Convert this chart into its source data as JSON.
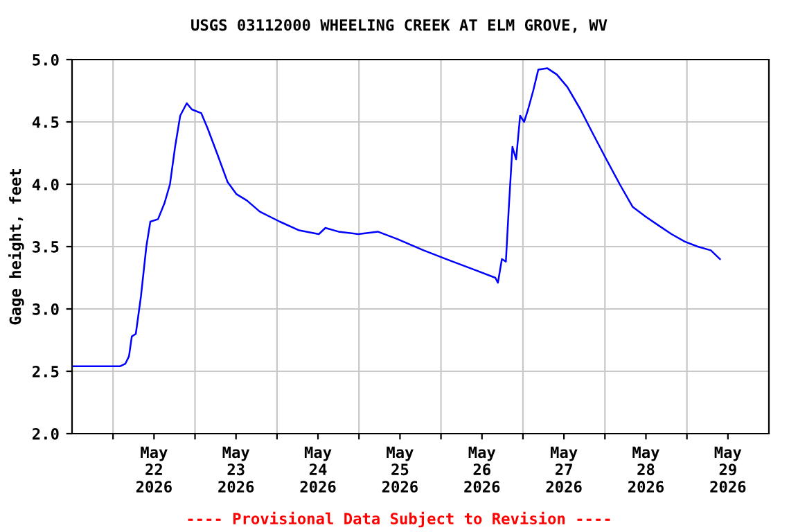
{
  "chart_data": {
    "type": "line",
    "title": "USGS 03112000 WHEELING CREEK AT ELM GROVE, WV",
    "ylabel": "Gage height, feet",
    "annotations": [
      "---- Provisional Data Subject to Revision ----"
    ],
    "x": [
      "2026-05-21T12:15",
      "2026-05-22T02:00",
      "2026-05-22T03:35",
      "2026-05-22T04:40",
      "2026-05-22T05:30",
      "2026-05-22T06:40",
      "2026-05-22T08:10",
      "2026-05-22T09:45",
      "2026-05-22T10:55",
      "2026-05-22T13:10",
      "2026-05-22T15:05",
      "2026-05-22T16:40",
      "2026-05-22T18:10",
      "2026-05-22T19:40",
      "2026-05-22T21:35",
      "2026-05-22T23:05",
      "2026-05-23T01:50",
      "2026-05-23T03:40",
      "2026-05-23T06:25",
      "2026-05-23T09:30",
      "2026-05-23T12:10",
      "2026-05-23T15:10",
      "2026-05-23T19:00",
      "2026-05-24T00:50",
      "2026-05-24T06:30",
      "2026-05-24T12:15",
      "2026-05-24T14:10",
      "2026-05-24T18:00",
      "2026-05-24T23:45",
      "2026-05-25T05:30",
      "2026-05-25T11:15",
      "2026-05-25T18:55",
      "2026-05-26T02:30",
      "2026-05-26T10:10",
      "2026-05-26T15:55",
      "2026-05-26T16:40",
      "2026-05-26T17:50",
      "2026-05-26T19:00",
      "2026-05-26T19:50",
      "2026-05-26T20:55",
      "2026-05-26T22:00",
      "2026-05-26T23:10",
      "2026-05-27T00:20",
      "2026-05-27T01:30",
      "2026-05-27T03:00",
      "2026-05-27T04:30",
      "2026-05-27T07:10",
      "2026-05-27T09:55",
      "2026-05-27T13:00",
      "2026-05-27T16:50",
      "2026-05-27T20:35",
      "2026-05-28T00:25",
      "2026-05-28T04:20",
      "2026-05-28T08:05",
      "2026-05-28T11:55",
      "2026-05-28T15:40",
      "2026-05-28T19:30",
      "2026-05-28T23:25",
      "2026-05-29T03:10",
      "2026-05-29T07:00",
      "2026-05-29T09:40"
    ],
    "series": [
      {
        "color": "#0000ff",
        "values": [
          2.54,
          2.54,
          2.56,
          2.62,
          2.78,
          2.8,
          3.1,
          3.5,
          3.7,
          3.72,
          3.85,
          4.0,
          4.3,
          4.55,
          4.65,
          4.6,
          4.57,
          4.45,
          4.25,
          4.02,
          3.92,
          3.87,
          3.78,
          3.7,
          3.63,
          3.6,
          3.65,
          3.62,
          3.6,
          3.62,
          3.56,
          3.47,
          3.39,
          3.31,
          3.25,
          3.21,
          3.4,
          3.38,
          3.8,
          4.3,
          4.2,
          4.55,
          4.5,
          4.6,
          4.75,
          4.92,
          4.93,
          4.88,
          4.78,
          4.6,
          4.4,
          4.2,
          4.0,
          3.82,
          3.74,
          3.67,
          3.6,
          3.54,
          3.5,
          3.47,
          3.4
        ]
      }
    ],
    "xlim": [
      "2026-05-21T12:00",
      "2026-05-30T00:00"
    ],
    "xticks": [
      {
        "value": "2026-05-22T00:00",
        "label": null
      },
      {
        "value": "2026-05-22T12:00",
        "label": "May\n22\n2026"
      },
      {
        "value": "2026-05-23T00:00",
        "label": null
      },
      {
        "value": "2026-05-23T12:00",
        "label": "May\n23\n2026"
      },
      {
        "value": "2026-05-24T00:00",
        "label": null
      },
      {
        "value": "2026-05-24T12:00",
        "label": "May\n24\n2026"
      },
      {
        "value": "2026-05-25T00:00",
        "label": null
      },
      {
        "value": "2026-05-25T12:00",
        "label": "May\n25\n2026"
      },
      {
        "value": "2026-05-26T00:00",
        "label": null
      },
      {
        "value": "2026-05-26T12:00",
        "label": "May\n26\n2026"
      },
      {
        "value": "2026-05-27T00:00",
        "label": null
      },
      {
        "value": "2026-05-27T12:00",
        "label": "May\n27\n2026"
      },
      {
        "value": "2026-05-28T00:00",
        "label": null
      },
      {
        "value": "2026-05-28T12:00",
        "label": "May\n28\n2026"
      },
      {
        "value": "2026-05-29T00:00",
        "label": null
      },
      {
        "value": "2026-05-29T12:00",
        "label": "May\n29\n2026"
      }
    ],
    "ylim": [
      2.0,
      5.0
    ],
    "yticks": [
      {
        "value": 2.0,
        "label": "2.0"
      },
      {
        "value": 2.5,
        "label": "2.5"
      },
      {
        "value": 3.0,
        "label": "3.0"
      },
      {
        "value": 3.5,
        "label": "3.5"
      },
      {
        "value": 4.0,
        "label": "4.0"
      },
      {
        "value": 4.5,
        "label": "4.5"
      },
      {
        "value": 5.0,
        "label": "5.0"
      }
    ],
    "grid": true,
    "line_style": "solid"
  }
}
